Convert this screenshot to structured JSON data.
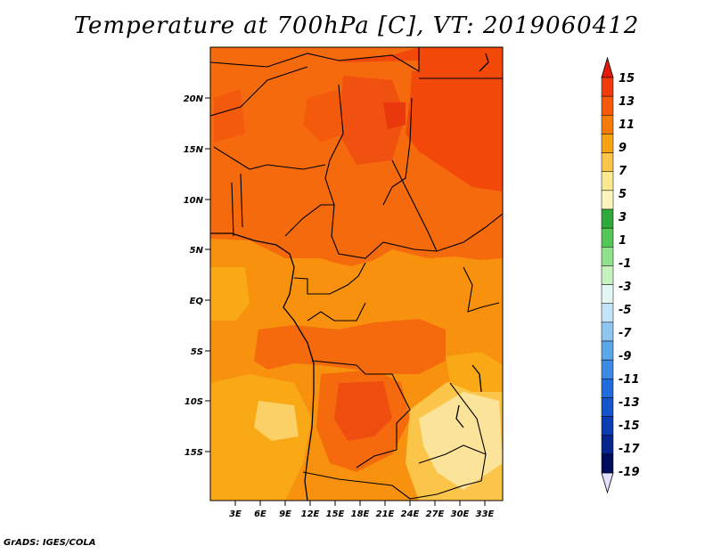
{
  "title": "Temperature at 700hPa [C], VT: 2019060412",
  "credit": "GrADS: IGES/COLA",
  "lat_labels": [
    "20N",
    "15N",
    "10N",
    "5N",
    "EQ",
    "5S",
    "10S",
    "15S"
  ],
  "lon_labels": [
    "3E",
    "6E",
    "9E",
    "12E",
    "15E",
    "18E",
    "21E",
    "24E",
    "27E",
    "30E",
    "33E"
  ],
  "colorbar": {
    "labels": [
      "15",
      "13",
      "11",
      "9",
      "7",
      "5",
      "3",
      "1",
      "-1",
      "-3",
      "-5",
      "-7",
      "-9",
      "-11",
      "-13",
      "-15",
      "-17",
      "-19"
    ],
    "colors": [
      "#e11a0c",
      "#f03c0a",
      "#f55a0a",
      "#f67a0c",
      "#f9a212",
      "#fbc54a",
      "#fbe98e",
      "#fdf6bc",
      "#2eaa3a",
      "#54c856",
      "#8ee28a",
      "#c6f2c0",
      "#e4f6f4",
      "#c4e4f8",
      "#8ec6f2",
      "#5aa8ec",
      "#3a8ae6",
      "#206cdc",
      "#1454cc",
      "#0c3cb4",
      "#06248e",
      "#000c5c",
      "#e0e0ff"
    ]
  },
  "chart_data": {
    "type": "heatmap",
    "title": "Temperature at 700hPa [C], VT: 2019060412",
    "units": "C",
    "lat_range": [
      -19,
      25
    ],
    "lon_range": [
      0,
      35
    ],
    "color_levels": [
      15,
      13,
      11,
      9,
      7,
      5,
      3,
      1,
      -1,
      -3,
      -5,
      -7,
      -9,
      -11,
      -13,
      -15,
      -17,
      -19
    ]
  }
}
